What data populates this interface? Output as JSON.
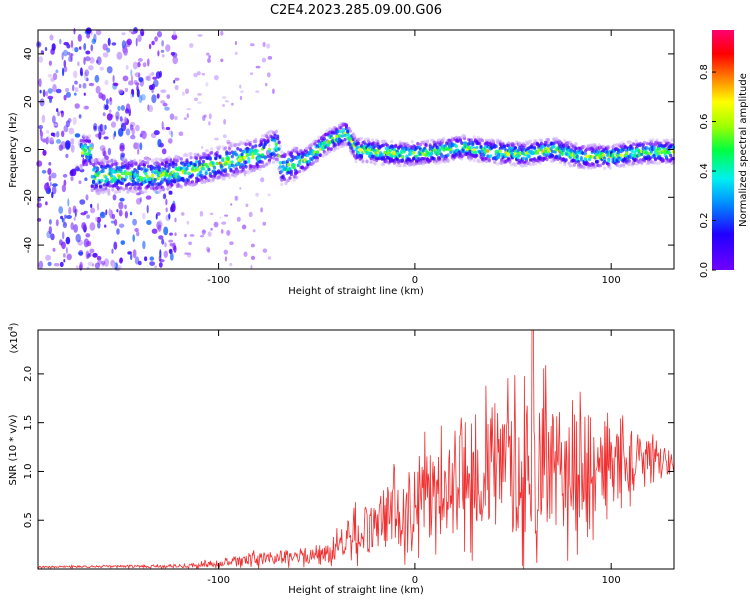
{
  "title": "C2E4.2023.285.09.00.G06",
  "colors": {
    "snr_line": "#f03030",
    "frame": "#000000"
  },
  "chart_data": [
    {
      "type": "heatmap",
      "xlabel": "Height of straight line (km)",
      "ylabel": "Frequency (Hz)",
      "xlim": [
        -192,
        132
      ],
      "ylim": [
        -50,
        50
      ],
      "xticks": [
        -100,
        0,
        100
      ],
      "yticks": [
        -40,
        -20,
        0,
        20,
        40
      ],
      "colorbar": {
        "label": "Normalized spectral amplitude",
        "range": [
          0.0,
          0.97
        ],
        "ticks": [
          "0.0",
          "0.2",
          "0.4",
          "0.6",
          "0.8"
        ],
        "colormap": "rainbow"
      },
      "ridge": [
        {
          "x": -165,
          "y": -11
        },
        {
          "x": -150,
          "y": -11
        },
        {
          "x": -130,
          "y": -11
        },
        {
          "x": -110,
          "y": -8
        },
        {
          "x": -95,
          "y": -5
        },
        {
          "x": -80,
          "y": -2
        },
        {
          "x": -70,
          "y": 2
        },
        {
          "x": -68,
          "y": -8
        },
        {
          "x": -55,
          "y": -4
        },
        {
          "x": -45,
          "y": 3
        },
        {
          "x": -35,
          "y": 7
        },
        {
          "x": -30,
          "y": 0
        },
        {
          "x": -20,
          "y": -1
        },
        {
          "x": -5,
          "y": -2
        },
        {
          "x": 10,
          "y": -1
        },
        {
          "x": 25,
          "y": 1
        },
        {
          "x": 40,
          "y": -1
        },
        {
          "x": 55,
          "y": -2
        },
        {
          "x": 70,
          "y": 0
        },
        {
          "x": 85,
          "y": -3
        },
        {
          "x": 100,
          "y": -3
        },
        {
          "x": 115,
          "y": -1
        },
        {
          "x": 132,
          "y": -1
        }
      ]
    },
    {
      "type": "line",
      "xlabel": "Height of straight line (km)",
      "ylabel": "SNR (10 * v/v)",
      "multiplier": "(x10",
      "multiplier_exp": "4",
      "multiplier_close": ")",
      "xlim": [
        -192,
        132
      ],
      "ylim": [
        0.0,
        2.45
      ],
      "xticks": [
        -100,
        0,
        100
      ],
      "yticks": [
        0.5,
        1.0,
        1.5,
        2.0
      ],
      "envelope": [
        {
          "x": -192,
          "mean": 0.02,
          "amp": 0.01
        },
        {
          "x": -120,
          "mean": 0.03,
          "amp": 0.02
        },
        {
          "x": -100,
          "mean": 0.05,
          "amp": 0.05
        },
        {
          "x": -80,
          "mean": 0.1,
          "amp": 0.08
        },
        {
          "x": -60,
          "mean": 0.13,
          "amp": 0.1
        },
        {
          "x": -45,
          "mean": 0.16,
          "amp": 0.12
        },
        {
          "x": -35,
          "mean": 0.3,
          "amp": 0.25
        },
        {
          "x": -20,
          "mean": 0.45,
          "amp": 0.35
        },
        {
          "x": -10,
          "mean": 0.6,
          "amp": 0.45
        },
        {
          "x": 0,
          "mean": 0.7,
          "amp": 0.5
        },
        {
          "x": 15,
          "mean": 0.85,
          "amp": 0.55
        },
        {
          "x": 30,
          "mean": 0.95,
          "amp": 0.7
        },
        {
          "x": 45,
          "mean": 1.0,
          "amp": 0.8
        },
        {
          "x": 60,
          "mean": 1.05,
          "amp": 0.9
        },
        {
          "x": 75,
          "mean": 1.0,
          "amp": 0.75
        },
        {
          "x": 90,
          "mean": 1.05,
          "amp": 0.7
        },
        {
          "x": 105,
          "mean": 1.1,
          "amp": 0.45
        },
        {
          "x": 120,
          "mean": 1.1,
          "amp": 0.3
        },
        {
          "x": 132,
          "mean": 1.1,
          "amp": 0.15
        }
      ],
      "peak": {
        "x": 60,
        "y": 2.45
      }
    }
  ]
}
